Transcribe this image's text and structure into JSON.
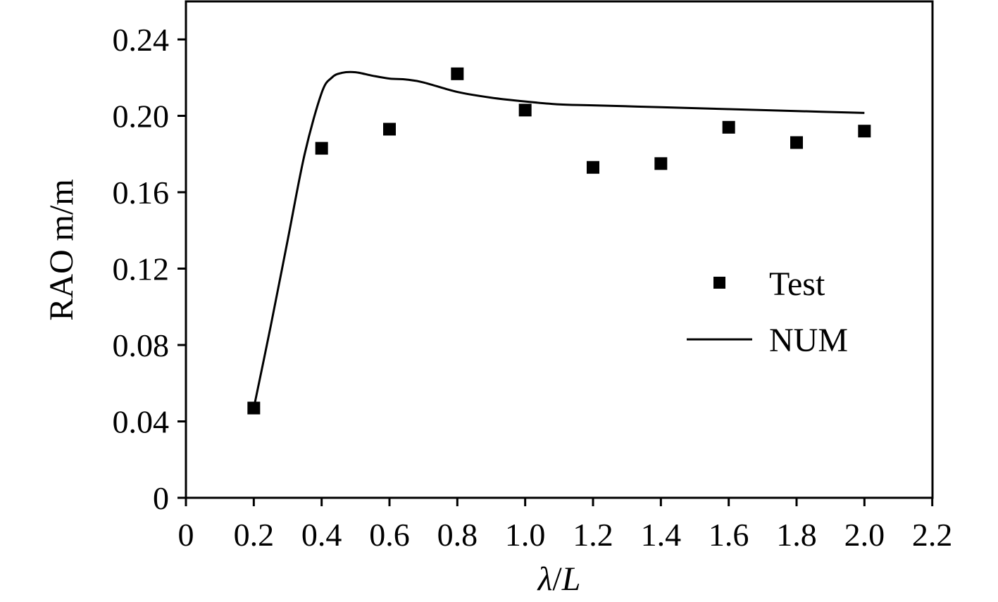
{
  "chart_data": {
    "type": "scatter",
    "xlabel_parts": [
      "λ",
      "/",
      "L"
    ],
    "ylabel": "RAO m/m",
    "xlim": [
      0,
      2.2
    ],
    "ylim": [
      0,
      0.26
    ],
    "x_ticks": [
      "0",
      "0.2",
      "0.4",
      "0.6",
      "0.8",
      "1.0",
      "1.2",
      "1.4",
      "1.6",
      "1.8",
      "2.0",
      "2.2"
    ],
    "x_tick_values": [
      0,
      0.2,
      0.4,
      0.6,
      0.8,
      1.0,
      1.2,
      1.4,
      1.6,
      1.8,
      2.0,
      2.2
    ],
    "y_ticks": [
      "0",
      "0.04",
      "0.08",
      "0.12",
      "0.16",
      "0.20",
      "0.24"
    ],
    "y_tick_values": [
      0,
      0.04,
      0.08,
      0.12,
      0.16,
      0.2,
      0.24
    ],
    "grid": false,
    "legend_placement": "right",
    "series": [
      {
        "name": "Test",
        "kind": "scatter",
        "x": [
          0.2,
          0.4,
          0.6,
          0.8,
          1.0,
          1.2,
          1.4,
          1.6,
          1.8,
          2.0
        ],
        "y": [
          0.047,
          0.183,
          0.193,
          0.222,
          0.203,
          0.173,
          0.175,
          0.194,
          0.186,
          0.192
        ]
      },
      {
        "name": "NUM",
        "kind": "line",
        "x": [
          0.2,
          0.25,
          0.3,
          0.35,
          0.4,
          0.43,
          0.46,
          0.5,
          0.55,
          0.6,
          0.65,
          0.7,
          0.8,
          0.9,
          1.0,
          1.1,
          1.2,
          1.4,
          1.6,
          1.8,
          2.0
        ],
        "y": [
          0.047,
          0.09,
          0.135,
          0.18,
          0.212,
          0.22,
          0.2225,
          0.2228,
          0.221,
          0.2195,
          0.219,
          0.2175,
          0.2125,
          0.2095,
          0.2075,
          0.206,
          0.2055,
          0.2045,
          0.2035,
          0.2025,
          0.2015
        ]
      }
    ]
  }
}
